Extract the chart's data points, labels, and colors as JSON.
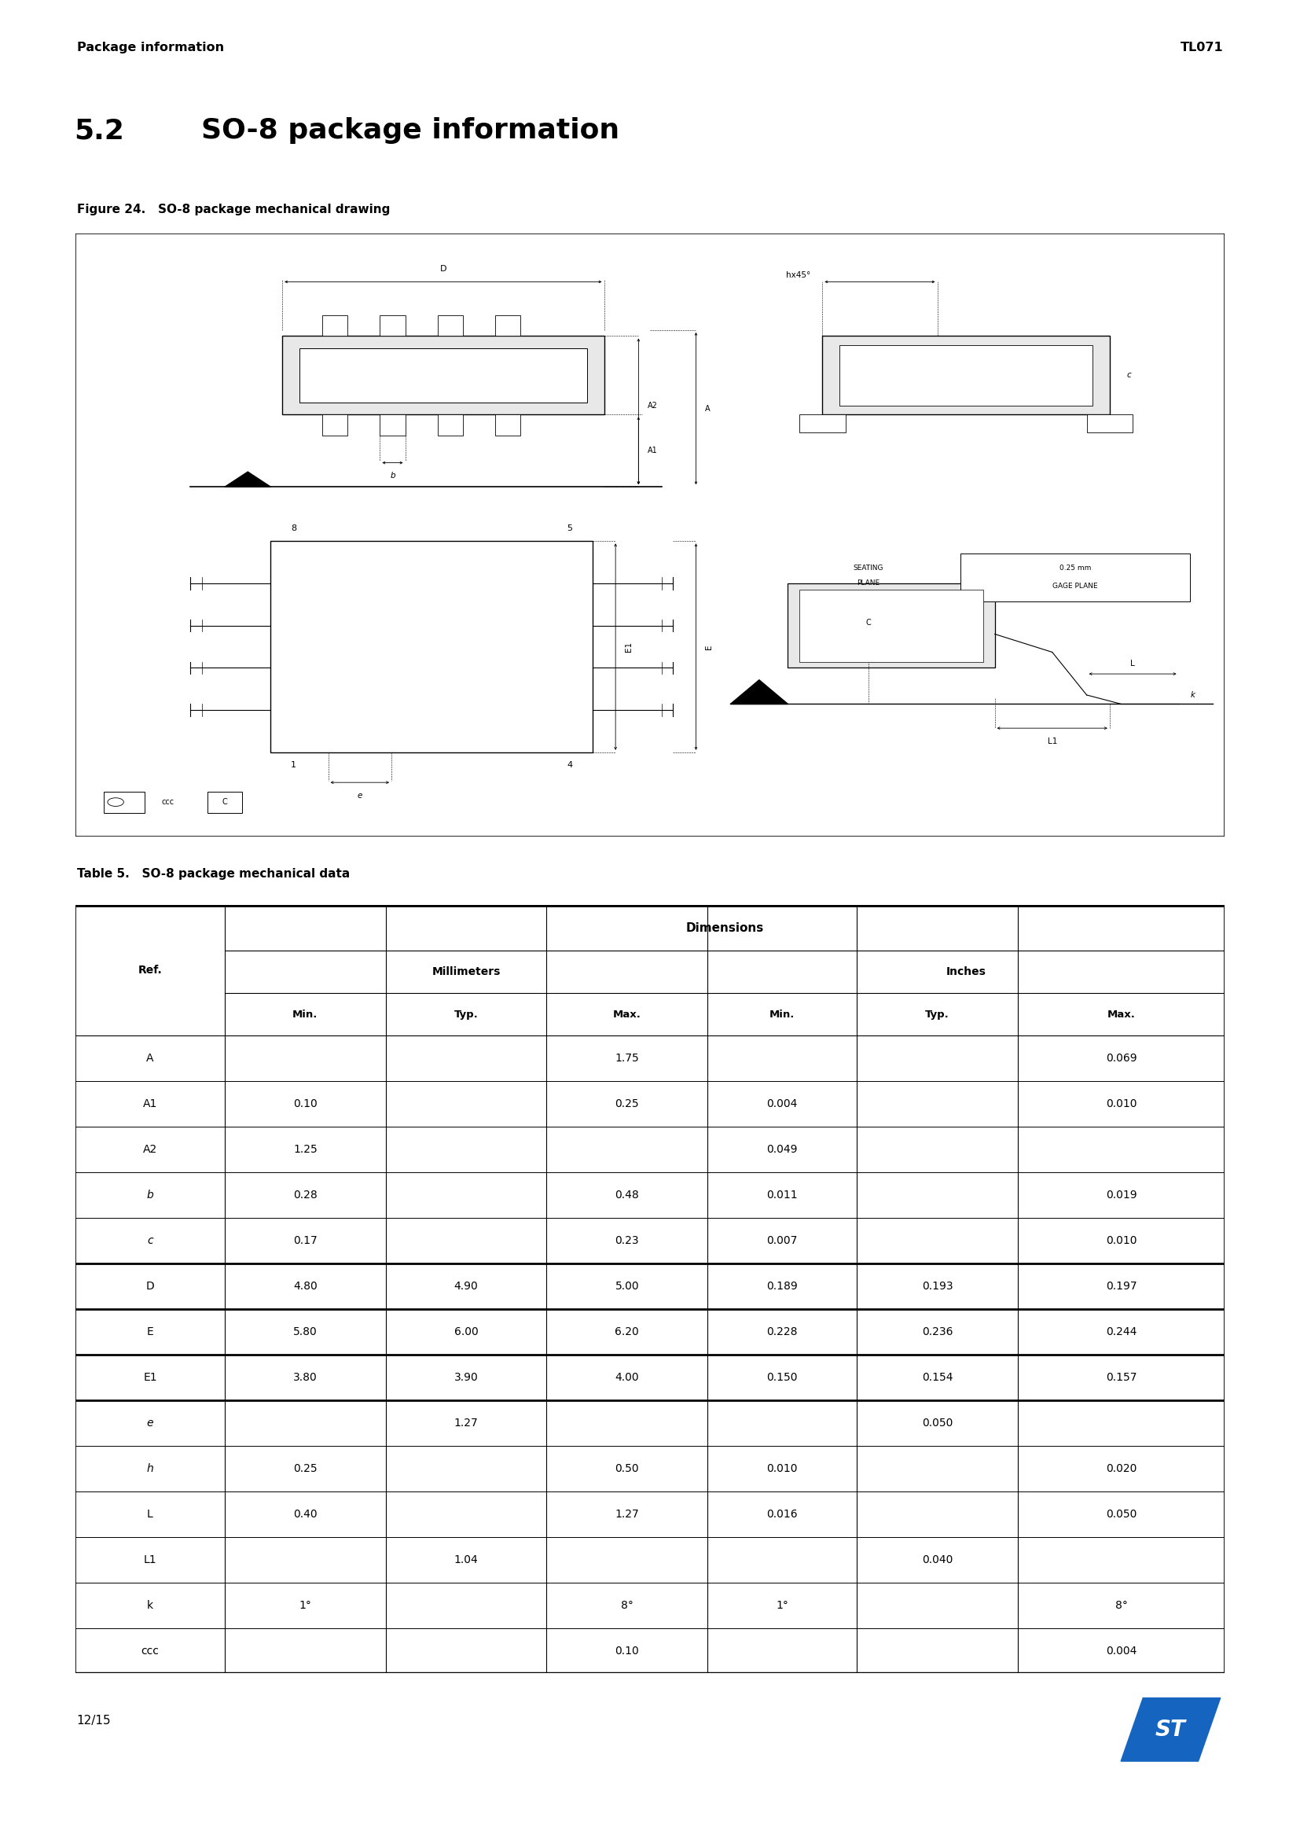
{
  "page_header_left": "Package information",
  "page_header_right": "TL071",
  "section_number": "5.2",
  "section_title": "SO-8 package information",
  "figure_label": "Figure 24.",
  "figure_title": "SO-8 package mechanical drawing",
  "table_label": "Table 5.",
  "table_title": "SO-8 package mechanical data",
  "page_footer_left": "12/15",
  "bg_color": "#ffffff",
  "table_rows": [
    [
      "A",
      "",
      "",
      "1.75",
      "",
      "",
      "0.069"
    ],
    [
      "A1",
      "0.10",
      "",
      "0.25",
      "0.004",
      "",
      "0.010"
    ],
    [
      "A2",
      "1.25",
      "",
      "",
      "0.049",
      "",
      ""
    ],
    [
      "b",
      "0.28",
      "",
      "0.48",
      "0.011",
      "",
      "0.019"
    ],
    [
      "c",
      "0.17",
      "",
      "0.23",
      "0.007",
      "",
      "0.010"
    ],
    [
      "D",
      "4.80",
      "4.90",
      "5.00",
      "0.189",
      "0.193",
      "0.197"
    ],
    [
      "E",
      "5.80",
      "6.00",
      "6.20",
      "0.228",
      "0.236",
      "0.244"
    ],
    [
      "E1",
      "3.80",
      "3.90",
      "4.00",
      "0.150",
      "0.154",
      "0.157"
    ],
    [
      "e",
      "",
      "1.27",
      "",
      "",
      "0.050",
      ""
    ],
    [
      "h",
      "0.25",
      "",
      "0.50",
      "0.010",
      "",
      "0.020"
    ],
    [
      "L",
      "0.40",
      "",
      "1.27",
      "0.016",
      "",
      "0.050"
    ],
    [
      "L1",
      "",
      "1.04",
      "",
      "",
      "0.040",
      ""
    ],
    [
      "k",
      "1°",
      "",
      "8°",
      "1°",
      "",
      "8°"
    ],
    [
      "ccc",
      "",
      "",
      "0.10",
      "",
      "",
      "0.004"
    ]
  ],
  "italic_refs": [
    "b",
    "c",
    "e",
    "h"
  ],
  "bold_line_rows": [
    4,
    5,
    6,
    7
  ],
  "col_positions": [
    0,
    13,
    27,
    41,
    55,
    68,
    82,
    100
  ],
  "sub_headers": [
    "Min.",
    "Typ.",
    "Max.",
    "Min.",
    "Typ.",
    "Max."
  ],
  "st_logo_color": "#1565C0"
}
